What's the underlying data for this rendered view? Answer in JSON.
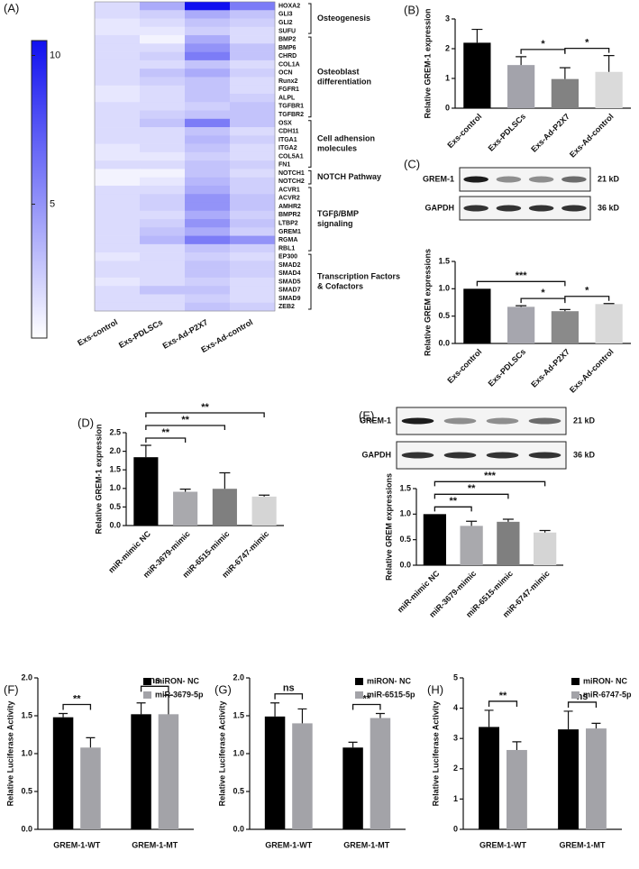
{
  "chart_data": [
    {
      "type": "heatmap",
      "panel": "(A)",
      "categories": [
        "Exs-control",
        "Exs-PDLSCs",
        "Exs-Ad-P2X7",
        "Exs-Ad-control"
      ],
      "colorscale": [
        "#ffffff",
        "#1010f0"
      ],
      "clim": [
        0.5,
        10.5
      ],
      "cticks": [
        5,
        10
      ],
      "groups": [
        {
          "label": [
            "Osteogenesis"
          ],
          "rows": [
            "HOXA2",
            "GLI3",
            "GLI2",
            "SUFU"
          ],
          "values": [
            [
              2,
              4,
              10.5,
              6
            ],
            [
              2,
              2.5,
              4,
              3
            ],
            [
              1.5,
              2,
              3,
              2.5
            ],
            [
              1.5,
              1.5,
              2.5,
              2
            ]
          ]
        },
        {
          "label": [
            "Osteoblast",
            "differentiation"
          ],
          "rows": [
            "BMP2",
            "BMP6",
            "CHRD",
            "COL1A",
            "OCN",
            "Runx2",
            "FGFR1",
            "ALPL",
            "TGFBR1",
            "TGFBR2"
          ],
          "values": [
            [
              2,
              1,
              4,
              2
            ],
            [
              2,
              2,
              5,
              3
            ],
            [
              2,
              2.5,
              6,
              3
            ],
            [
              2,
              2,
              3,
              2
            ],
            [
              2,
              3,
              4,
              2.5
            ],
            [
              2,
              2.5,
              3,
              2
            ],
            [
              1.5,
              2,
              3,
              2
            ],
            [
              1.5,
              2,
              3,
              2.5
            ],
            [
              2,
              2,
              2.5,
              3
            ],
            [
              2,
              2.5,
              3,
              3
            ]
          ]
        },
        {
          "label": [
            "Cell adhension",
            "molecules"
          ],
          "rows": [
            "OSX",
            "CDH11",
            "ITGA1",
            "ITGA2",
            "COL5A1",
            "FN1"
          ],
          "values": [
            [
              2,
              3,
              6,
              3
            ],
            [
              2,
              2,
              3,
              2
            ],
            [
              2,
              2,
              3.5,
              2.5
            ],
            [
              1.5,
              2,
              3,
              2
            ],
            [
              1.5,
              1.5,
              2.5,
              2
            ],
            [
              2,
              2,
              3,
              2.5
            ]
          ]
        },
        {
          "label": [
            "NOTCH Pathway"
          ],
          "rows": [
            "NOTCH1",
            "NOTCH2"
          ],
          "values": [
            [
              1,
              1,
              3,
              2
            ],
            [
              1,
              1.5,
              3.5,
              2.5
            ]
          ]
        },
        {
          "label": [
            "TGFβ/BMP",
            "signaling"
          ],
          "rows": [
            "ACVR1",
            "ACVR2",
            "AMHR2",
            "BMPR2",
            "LTBP2",
            "GREM1",
            "RGMA",
            "RBL1"
          ],
          "values": [
            [
              2,
              2,
              4,
              2.5
            ],
            [
              2,
              2.5,
              5,
              3
            ],
            [
              2,
              2.5,
              5,
              3
            ],
            [
              2,
              2,
              4,
              2.5
            ],
            [
              2,
              2.5,
              5,
              3
            ],
            [
              2,
              3,
              4,
              2.5
            ],
            [
              2,
              3.5,
              6,
              5
            ],
            [
              2,
              2,
              3,
              2.5
            ]
          ]
        },
        {
          "label": [
            "Transcription Factors",
            "& Cofactors"
          ],
          "rows": [
            "EP300",
            "SMAD2",
            "SMAD4",
            "SMAD5",
            "SMAD7",
            "SMAD9",
            "ZEB2"
          ],
          "values": [
            [
              1.5,
              2,
              2.5,
              2
            ],
            [
              2,
              2,
              3,
              2.5
            ],
            [
              2,
              2,
              3,
              2.5
            ],
            [
              1.5,
              2,
              2.5,
              2
            ],
            [
              2,
              3,
              3,
              2
            ],
            [
              2,
              2,
              2.5,
              2
            ],
            [
              2,
              2,
              3,
              2.5
            ]
          ]
        }
      ]
    },
    {
      "type": "bar",
      "panel": "(B)",
      "ylabel": "Relative GREM-1 expression",
      "categories": [
        "Exs-control",
        "Exs-PDLSCs",
        "Exs-Ad-P2X7",
        "Exs-Ad-control"
      ],
      "values": [
        2.2,
        1.45,
        0.98,
        1.22
      ],
      "errors": [
        0.45,
        0.28,
        0.38,
        0.55
      ],
      "colors": [
        "#000000",
        "#a3a3ab",
        "#828282",
        "#dadada"
      ],
      "ylim": [
        0,
        3
      ],
      "yticks": [
        0,
        1,
        2,
        3
      ],
      "significance": [
        {
          "pair": [
            1,
            2
          ],
          "label": "*"
        },
        {
          "pair": [
            2,
            3
          ],
          "label": "*"
        }
      ]
    },
    {
      "type": "bar",
      "panel": "(C)",
      "ylabel": "Relative GREM expressions",
      "blot": [
        {
          "label": "GREM-1",
          "size": "21 kD"
        },
        {
          "label": "GAPDH",
          "size": "36 kD"
        }
      ],
      "categories": [
        "Exs-control",
        "Exs-PDLSCs",
        "Exs-Ad-P2X7",
        "Exs-Ad-control"
      ],
      "values": [
        1.0,
        0.67,
        0.59,
        0.72
      ],
      "errors": [
        0,
        0.02,
        0.03,
        0.01
      ],
      "colors": [
        "#000000",
        "#a6a6ae",
        "#8a8a8a",
        "#d9d9d9"
      ],
      "ylim": [
        0,
        1.5
      ],
      "yticks": [
        {
          "value": 0,
          "label": "0.0"
        },
        0.5,
        {
          "value": 1,
          "label": "1.0"
        },
        1.5
      ],
      "significance": [
        {
          "pair": [
            1,
            2
          ],
          "label": "*"
        },
        {
          "pair": [
            2,
            3
          ],
          "label": "*"
        },
        {
          "pair": [
            0,
            2
          ],
          "label": "***"
        }
      ]
    },
    {
      "type": "bar",
      "panel": "(D)",
      "ylabel": "Relative GREM-1 expression",
      "categories": [
        "miR-mimic NC",
        "miR-3679-mimic",
        "miR-6515-mimic",
        "miR-6747-mimic"
      ],
      "values": [
        1.84,
        0.91,
        0.99,
        0.78
      ],
      "errors": [
        0.32,
        0.07,
        0.43,
        0.04
      ],
      "colors": [
        "#000000",
        "#a9a9ad",
        "#7f7f7f",
        "#d5d5d5"
      ],
      "ylim": [
        0,
        2.5
      ],
      "yticks": [
        {
          "value": 0,
          "label": "0.0"
        },
        0.5,
        {
          "value": 1,
          "label": "1.0"
        },
        1.5,
        {
          "value": 2,
          "label": "2.0"
        },
        2.5
      ],
      "significance": [
        {
          "pair": [
            0,
            1
          ],
          "label": "**"
        },
        {
          "pair": [
            0,
            2
          ],
          "label": "**"
        },
        {
          "pair": [
            0,
            3
          ],
          "label": "**"
        }
      ]
    },
    {
      "type": "bar",
      "panel": "(E)",
      "ylabel": "Relative GREM expressions",
      "blot": [
        {
          "label": "GREM-1",
          "size": "21 kD"
        },
        {
          "label": "GAPDH",
          "size": "36 kD"
        }
      ],
      "categories": [
        "miR-mimic NC",
        "miR-3679-mimic",
        "miR-6515-mimic",
        "miR-6747-mimic"
      ],
      "values": [
        1.0,
        0.77,
        0.85,
        0.64
      ],
      "errors": [
        0,
        0.09,
        0.05,
        0.04
      ],
      "colors": [
        "#000000",
        "#a9a9ad",
        "#7f7f7f",
        "#d5d5d5"
      ],
      "ylim": [
        0,
        1.5
      ],
      "yticks": [
        {
          "value": 0,
          "label": "0.0"
        },
        0.5,
        {
          "value": 1,
          "label": "1.0"
        },
        1.5
      ],
      "significance": [
        {
          "pair": [
            0,
            1
          ],
          "label": "**"
        },
        {
          "pair": [
            0,
            2
          ],
          "label": "**"
        },
        {
          "pair": [
            0,
            3
          ],
          "label": "***"
        }
      ]
    },
    {
      "type": "grouped_bar",
      "panel": "(F)",
      "ylabel": "Relative Luciferase Activity",
      "legend": "upper right",
      "categories": [
        "GREM-1-WT",
        "GREM-1-MT"
      ],
      "series": [
        {
          "name": "miRON- NC",
          "color": "#000000",
          "values": [
            1.48,
            1.52
          ],
          "errors": [
            0.05,
            0.15
          ]
        },
        {
          "name": "miR-3679-5p",
          "color": "#a3a3a8",
          "values": [
            1.08,
            1.52
          ],
          "errors": [
            0.13,
            0.25
          ]
        }
      ],
      "ylim": [
        0,
        2
      ],
      "yticks": [
        {
          "value": 0,
          "label": "0.0"
        },
        0.5,
        {
          "value": 1,
          "label": "1.0"
        },
        1.5,
        {
          "value": 2,
          "label": "2.0"
        }
      ],
      "significance": [
        {
          "category": 0,
          "label": "**"
        },
        {
          "category": 1,
          "label": "ns"
        }
      ]
    },
    {
      "type": "grouped_bar",
      "panel": "(G)",
      "ylabel": "Relative Luciferase Activity",
      "legend": "upper right",
      "categories": [
        "GREM-1-WT",
        "GREM-1-MT"
      ],
      "series": [
        {
          "name": "miRON- NC",
          "color": "#000000",
          "values": [
            1.49,
            1.08
          ],
          "errors": [
            0.18,
            0.07
          ]
        },
        {
          "name": "miR-6515-5p",
          "color": "#a3a3a8",
          "values": [
            1.4,
            1.47
          ],
          "errors": [
            0.19,
            0.06
          ]
        }
      ],
      "ylim": [
        0,
        2
      ],
      "yticks": [
        {
          "value": 0,
          "label": "0.0"
        },
        0.5,
        {
          "value": 1,
          "label": "1.0"
        },
        1.5,
        {
          "value": 2,
          "label": "2.0"
        }
      ],
      "significance": [
        {
          "category": 0,
          "label": "ns"
        },
        {
          "category": 1,
          "label": "**"
        }
      ]
    },
    {
      "type": "grouped_bar",
      "panel": "(H)",
      "ylabel": "Relative Luciferase Activity",
      "legend": "upper right",
      "categories": [
        "GREM-1-WT",
        "GREM-1-MT"
      ],
      "series": [
        {
          "name": "miRON- NC",
          "color": "#000000",
          "values": [
            3.38,
            3.3
          ],
          "errors": [
            0.55,
            0.6
          ]
        },
        {
          "name": "miR-6747-5p",
          "color": "#a3a3a8",
          "values": [
            2.62,
            3.33
          ],
          "errors": [
            0.27,
            0.17
          ]
        }
      ],
      "ylim": [
        0,
        5
      ],
      "yticks": [
        0,
        1,
        2,
        3,
        4,
        5
      ],
      "significance": [
        {
          "category": 0,
          "label": "**"
        },
        {
          "category": 1,
          "label": "ns"
        }
      ]
    }
  ]
}
